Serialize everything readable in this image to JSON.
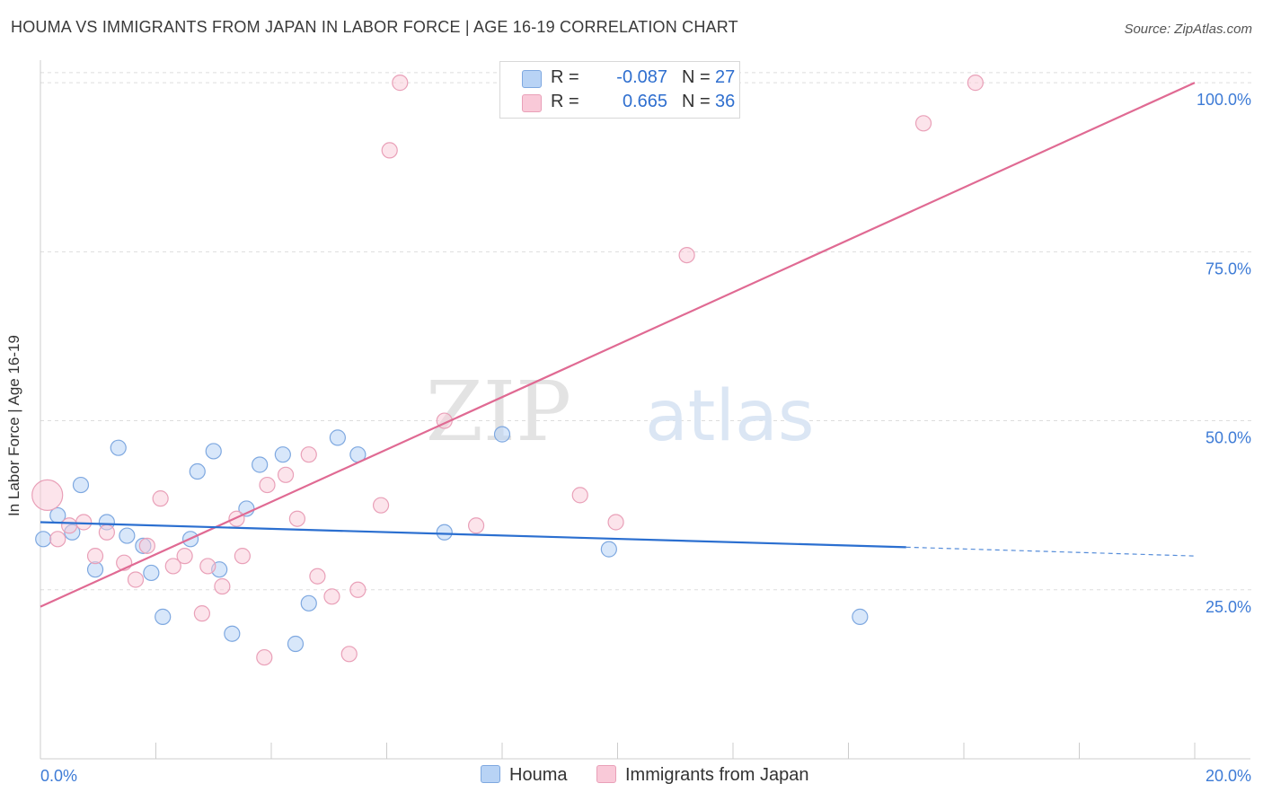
{
  "header": {
    "title": "HOUMA VS IMMIGRANTS FROM JAPAN IN LABOR FORCE | AGE 16-19 CORRELATION CHART",
    "source": "Source: ZipAtlas.com"
  },
  "watermark": {
    "part1": "ZIP",
    "part2": "atlas"
  },
  "legend": {
    "series1": {
      "r_label": "R =",
      "r_value": "-0.087",
      "n_label": "N =",
      "n_value": "27"
    },
    "series2": {
      "r_label": "R =",
      "r_value": "0.665",
      "n_label": "N =",
      "n_value": "36"
    }
  },
  "colors": {
    "houma_fill": "#b8d3f5",
    "houma_stroke": "#7ea8e0",
    "houma_line": "#2b6fd0",
    "japan_fill": "#f9c9d8",
    "japan_stroke": "#e9a0b8",
    "japan_line": "#e06a93",
    "grid": "#dddddd",
    "axis_text": "#3d7bd6"
  },
  "chart_data": {
    "type": "scatter",
    "title": "HOUMA VS IMMIGRANTS FROM JAPAN IN LABOR FORCE | AGE 16-19 CORRELATION CHART",
    "xlabel": "",
    "ylabel": "In Labor Force | Age 16-19",
    "xlim": [
      0,
      20
    ],
    "ylim": [
      0,
      104
    ],
    "x_tick_labels": [
      "0.0%",
      "20.0%"
    ],
    "y_ticks": [
      25,
      50,
      75,
      100
    ],
    "y_tick_labels": [
      "25.0%",
      "50.0%",
      "75.0%",
      "100.0%"
    ],
    "series": [
      {
        "name": "Houma",
        "points": [
          {
            "x": 0.05,
            "y": 32.5
          },
          {
            "x": 0.3,
            "y": 36
          },
          {
            "x": 0.55,
            "y": 33.5
          },
          {
            "x": 0.7,
            "y": 40.5
          },
          {
            "x": 0.95,
            "y": 28
          },
          {
            "x": 1.15,
            "y": 35
          },
          {
            "x": 1.35,
            "y": 46
          },
          {
            "x": 1.5,
            "y": 33
          },
          {
            "x": 1.78,
            "y": 31.5
          },
          {
            "x": 1.92,
            "y": 27.5
          },
          {
            "x": 2.12,
            "y": 21
          },
          {
            "x": 2.6,
            "y": 32.5
          },
          {
            "x": 2.72,
            "y": 42.5
          },
          {
            "x": 3.0,
            "y": 45.5
          },
          {
            "x": 3.1,
            "y": 28
          },
          {
            "x": 3.32,
            "y": 18.5
          },
          {
            "x": 3.57,
            "y": 37
          },
          {
            "x": 3.8,
            "y": 43.5
          },
          {
            "x": 4.2,
            "y": 45
          },
          {
            "x": 4.42,
            "y": 17
          },
          {
            "x": 4.65,
            "y": 23
          },
          {
            "x": 5.15,
            "y": 47.5
          },
          {
            "x": 5.5,
            "y": 45
          },
          {
            "x": 7.0,
            "y": 33.5
          },
          {
            "x": 8.0,
            "y": 48
          },
          {
            "x": 9.85,
            "y": 31
          },
          {
            "x": 14.2,
            "y": 21
          }
        ],
        "trend": {
          "x": [
            0,
            15
          ],
          "y": [
            35,
            31.3
          ]
        },
        "trend_dashed": {
          "x": [
            15,
            20
          ],
          "y": [
            31.3,
            30
          ]
        }
      },
      {
        "name": "Immigrants from Japan",
        "points": [
          {
            "x": 0.12,
            "y": 39
          },
          {
            "x": 0.3,
            "y": 32.5
          },
          {
            "x": 0.5,
            "y": 34.5
          },
          {
            "x": 0.75,
            "y": 35
          },
          {
            "x": 0.95,
            "y": 30
          },
          {
            "x": 1.15,
            "y": 33.5
          },
          {
            "x": 1.45,
            "y": 29
          },
          {
            "x": 1.65,
            "y": 26.5
          },
          {
            "x": 1.85,
            "y": 31.5
          },
          {
            "x": 2.08,
            "y": 38.5
          },
          {
            "x": 2.3,
            "y": 28.5
          },
          {
            "x": 2.5,
            "y": 30
          },
          {
            "x": 2.8,
            "y": 21.5
          },
          {
            "x": 2.9,
            "y": 28.5
          },
          {
            "x": 3.15,
            "y": 25.5
          },
          {
            "x": 3.4,
            "y": 35.5
          },
          {
            "x": 3.5,
            "y": 30
          },
          {
            "x": 3.88,
            "y": 15
          },
          {
            "x": 3.93,
            "y": 40.5
          },
          {
            "x": 4.25,
            "y": 42
          },
          {
            "x": 4.45,
            "y": 35.5
          },
          {
            "x": 4.65,
            "y": 45
          },
          {
            "x": 4.8,
            "y": 27
          },
          {
            "x": 5.05,
            "y": 24
          },
          {
            "x": 5.35,
            "y": 15.5
          },
          {
            "x": 5.5,
            "y": 25
          },
          {
            "x": 5.9,
            "y": 37.5
          },
          {
            "x": 6.05,
            "y": 90
          },
          {
            "x": 6.23,
            "y": 100
          },
          {
            "x": 7.0,
            "y": 50
          },
          {
            "x": 7.55,
            "y": 34.5
          },
          {
            "x": 9.35,
            "y": 39
          },
          {
            "x": 9.97,
            "y": 35
          },
          {
            "x": 11.2,
            "y": 74.5
          },
          {
            "x": 15.3,
            "y": 94
          },
          {
            "x": 16.2,
            "y": 100
          }
        ],
        "trend": {
          "x": [
            0,
            20
          ],
          "y": [
            22.5,
            100
          ]
        }
      }
    ]
  },
  "bottom_legend": {
    "item1": "Houma",
    "item2": "Immigrants from Japan"
  }
}
